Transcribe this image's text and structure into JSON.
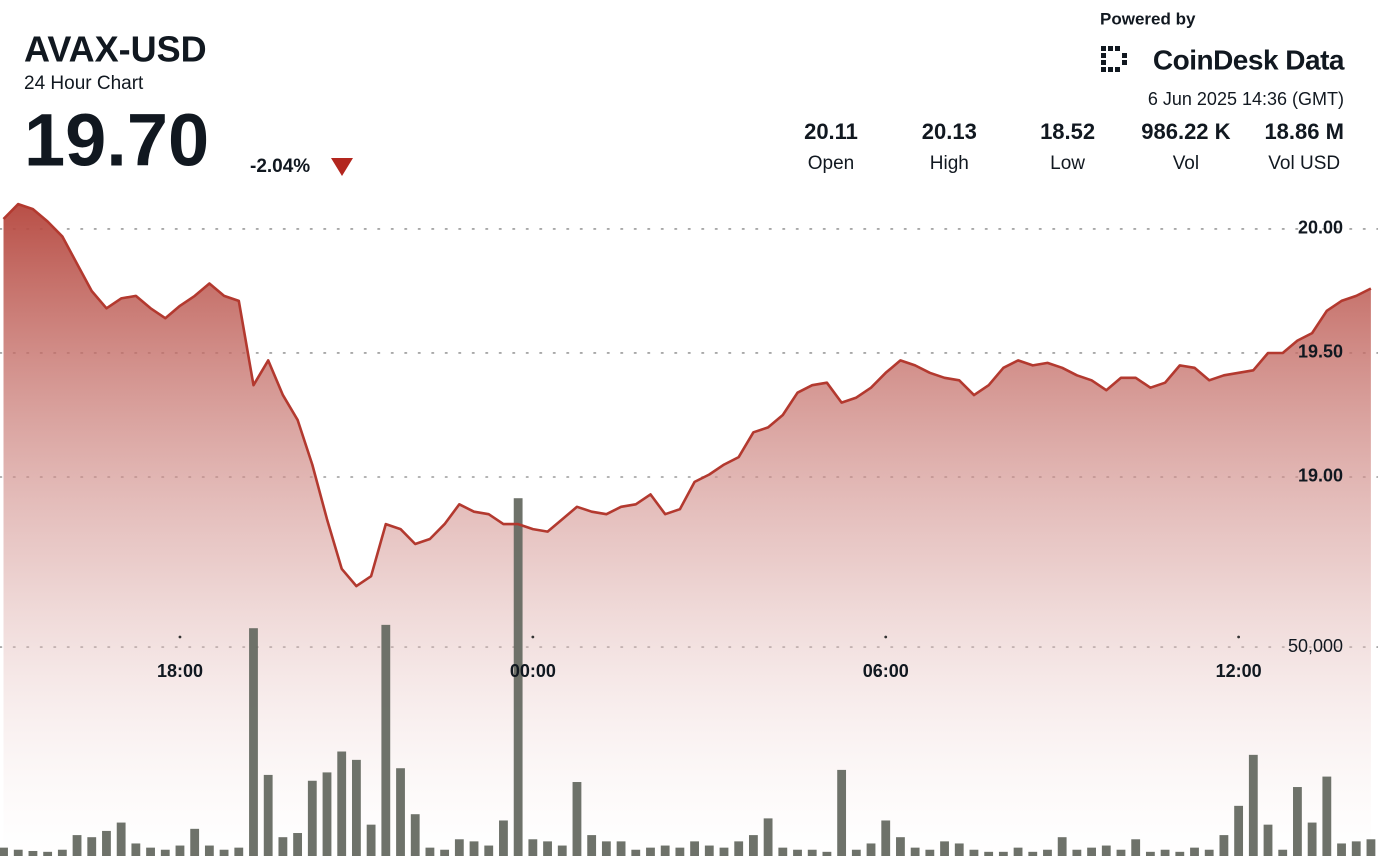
{
  "chart_data": {
    "type": "line",
    "title": "AVAX-USD",
    "subtitle": "24 Hour Chart",
    "last_price": "19.70",
    "change": "-2.04%",
    "powered_by": "Powered by",
    "brand": "CoinDesk Data",
    "timestamp": "6 Jun 2025 14:36 (GMT)",
    "stats": [
      {
        "value": "20.11",
        "label": "Open"
      },
      {
        "value": "20.13",
        "label": "High"
      },
      {
        "value": "18.52",
        "label": "Low"
      },
      {
        "value": "986.22 K",
        "label": "Vol"
      },
      {
        "value": "18.86 M",
        "label": "Vol USD"
      }
    ],
    "x": [
      15,
      15.25,
      15.5,
      15.75,
      16,
      16.25,
      16.5,
      16.75,
      17,
      17.25,
      17.5,
      17.75,
      18,
      18.25,
      18.5,
      18.75,
      19,
      19.25,
      19.5,
      19.75,
      20,
      20.25,
      20.5,
      20.75,
      21,
      21.25,
      21.5,
      21.75,
      22,
      22.25,
      22.5,
      22.75,
      23,
      23.25,
      23.5,
      23.75,
      24,
      24.25,
      24.5,
      24.75,
      25,
      25.25,
      25.5,
      25.75,
      26,
      26.25,
      26.5,
      26.75,
      27,
      27.25,
      27.5,
      27.75,
      28,
      28.25,
      28.5,
      28.75,
      29,
      29.25,
      29.5,
      29.75,
      30,
      30.25,
      30.5,
      30.75,
      31,
      31.25,
      31.5,
      31.75,
      32,
      32.25,
      32.5,
      32.75,
      33,
      33.25,
      33.5,
      33.75,
      34,
      34.25,
      34.5,
      34.75,
      35,
      35.25,
      35.5,
      35.75,
      36,
      36.25,
      36.5,
      36.75,
      37,
      37.25,
      37.5,
      37.75,
      38,
      38.25
    ],
    "series": [
      {
        "color": "#b3392f",
        "values": [
          20.04,
          20.1,
          20.08,
          20.03,
          19.97,
          19.86,
          19.75,
          19.68,
          19.72,
          19.73,
          19.68,
          19.64,
          19.69,
          19.73,
          19.78,
          19.73,
          19.71,
          19.37,
          19.47,
          19.33,
          19.23,
          19.05,
          18.83,
          18.63,
          18.56,
          18.6,
          18.81,
          18.79,
          18.73,
          18.75,
          18.81,
          18.89,
          18.86,
          18.85,
          18.81,
          18.81,
          18.79,
          18.78,
          18.83,
          18.88,
          18.86,
          18.85,
          18.88,
          18.89,
          18.93,
          18.85,
          18.87,
          18.98,
          19.01,
          19.05,
          19.08,
          19.18,
          19.2,
          19.25,
          19.34,
          19.37,
          19.38,
          19.3,
          19.32,
          19.36,
          19.42,
          19.47,
          19.45,
          19.42,
          19.4,
          19.39,
          19.33,
          19.37,
          19.44,
          19.47,
          19.45,
          19.46,
          19.44,
          19.41,
          19.39,
          19.35,
          19.4,
          19.4,
          19.36,
          19.38,
          19.45,
          19.44,
          19.39,
          19.41,
          19.42,
          19.43,
          19.5,
          19.5,
          19.55,
          19.58,
          19.67,
          19.71,
          19.73,
          19.76
        ]
      },
      {
        "type": "bar",
        "axis": "y2",
        "color": "#666a62",
        "values": [
          2000,
          1500,
          1200,
          1000,
          1500,
          5000,
          4500,
          6000,
          8000,
          3000,
          2000,
          1500,
          2500,
          6500,
          2500,
          1500,
          2000,
          54500,
          19400,
          4500,
          5500,
          18000,
          20000,
          25000,
          23000,
          7500,
          55300,
          21000,
          10000,
          2000,
          1500,
          4000,
          3500,
          2500,
          8500,
          85600,
          4000,
          3500,
          2500,
          17700,
          5000,
          3500,
          3500,
          1500,
          2000,
          2500,
          2000,
          3500,
          2500,
          2000,
          3500,
          5000,
          9000,
          2000,
          1500,
          1500,
          1000,
          20600,
          1500,
          3000,
          8500,
          4500,
          2000,
          1500,
          3500,
          3000,
          1500,
          1000,
          1000,
          2000,
          1000,
          1500,
          4500,
          1500,
          2000,
          2500,
          1500,
          4000,
          1000,
          1500,
          1000,
          2000,
          1500,
          5000,
          12000,
          24200,
          7500,
          1500,
          16500,
          8000,
          19000,
          3000,
          3500,
          4000
        ]
      }
    ],
    "xlim": [
      14.94,
      38.37
    ],
    "xticks": [
      {
        "value": 18,
        "label": "18:00"
      },
      {
        "value": 24,
        "label": "00:00"
      },
      {
        "value": 30,
        "label": "06:00"
      },
      {
        "value": 36,
        "label": "12:00"
      }
    ],
    "ylim": [
      17.472,
      20.923
    ],
    "yticks": [
      {
        "value": 19,
        "label": "19.00"
      },
      {
        "value": 19.5,
        "label": "19.50"
      },
      {
        "value": 20,
        "label": "20.00"
      }
    ],
    "y2lim": [
      0,
      204800
    ],
    "y2ticks": [
      {
        "value": 50000,
        "label": "50,000"
      }
    ],
    "grid": true
  }
}
